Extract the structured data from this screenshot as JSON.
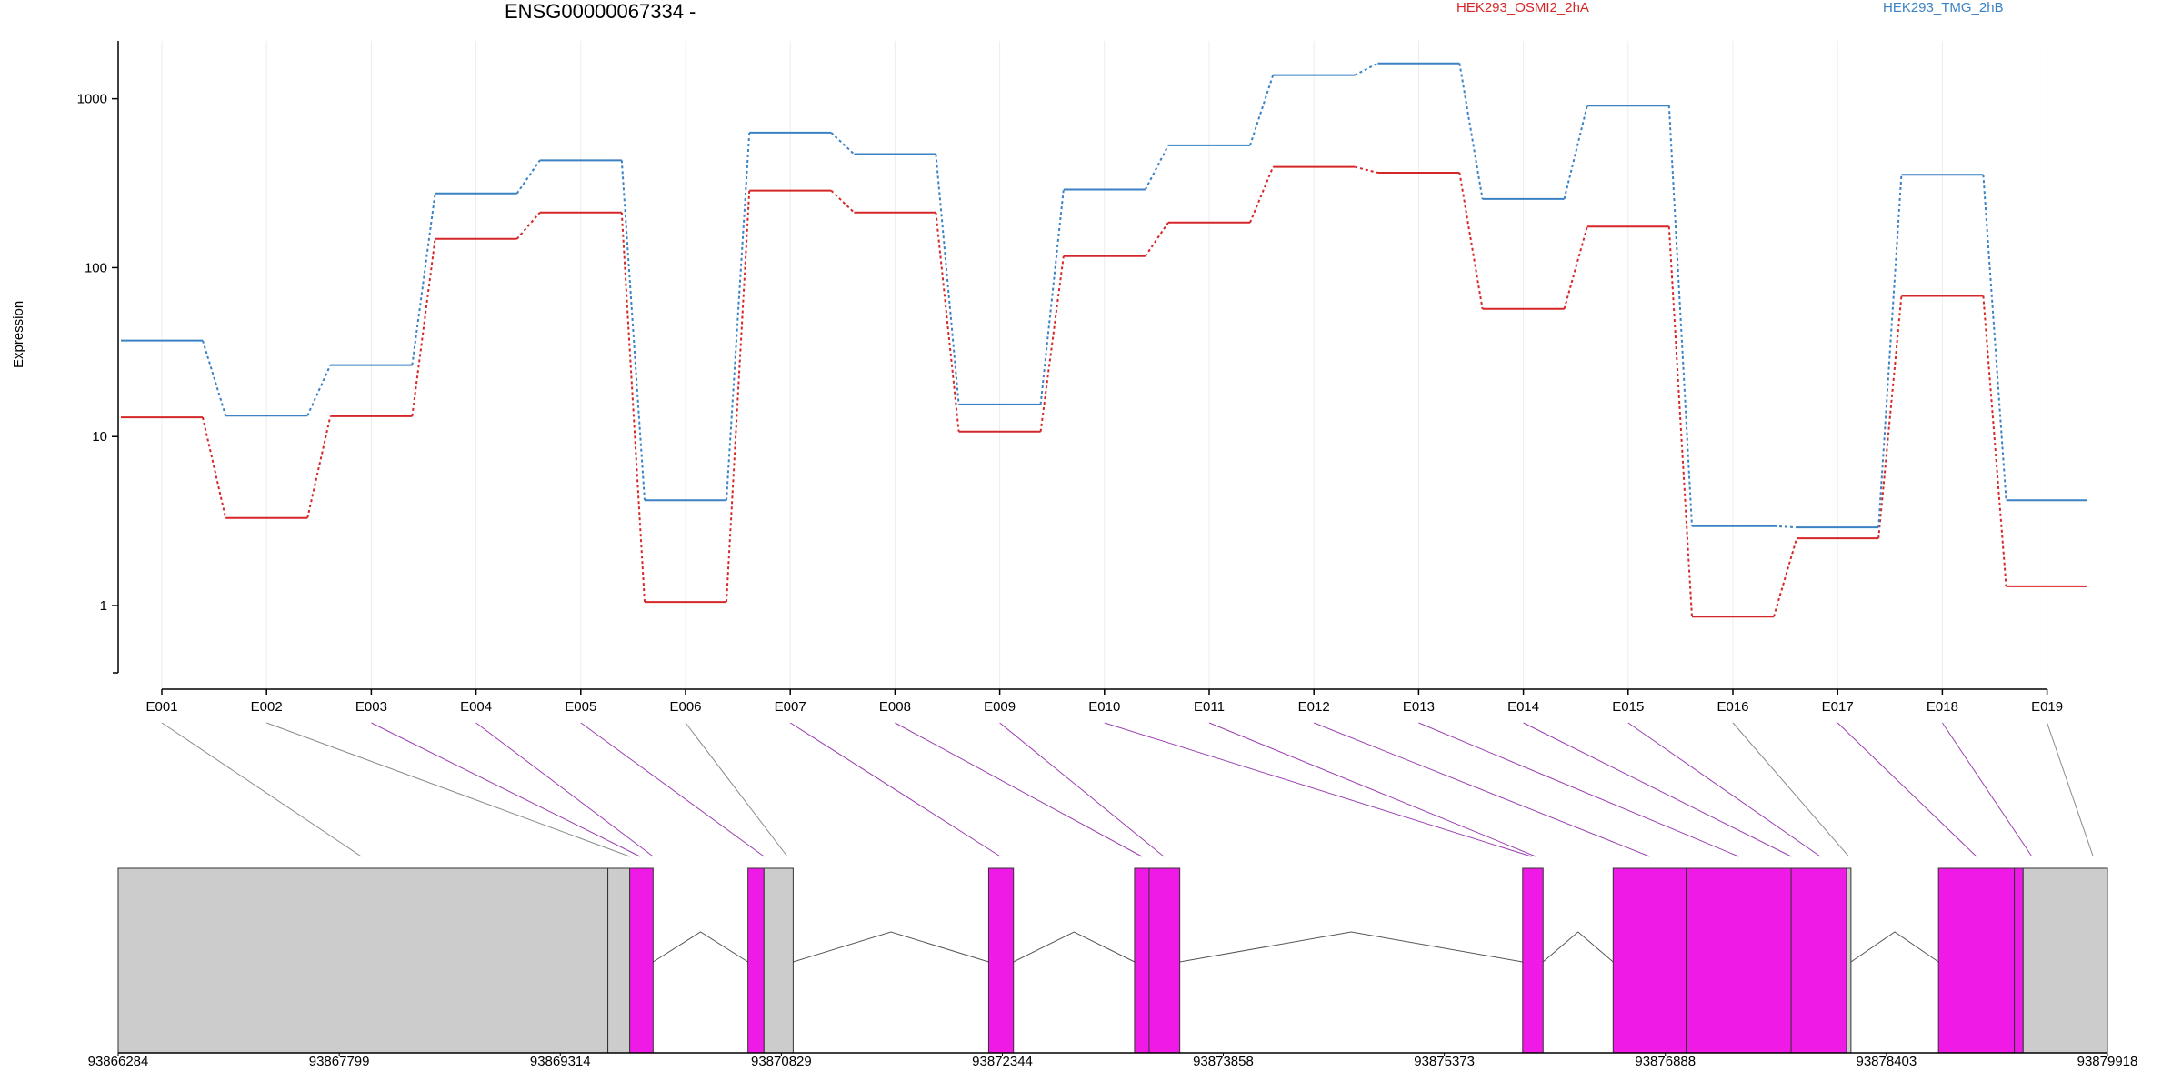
{
  "chart_data": {
    "type": "line",
    "title": "ENSG00000067334 -",
    "ylabel": "Expression",
    "xlabel": "",
    "yscale": "log",
    "ylim": [
      0.4,
      2200
    ],
    "yticks": [
      1,
      10,
      100,
      1000
    ],
    "ytick_labels": [
      "1",
      "10",
      "100",
      "1000"
    ],
    "grid": "vertical-light",
    "legend_placement": "top",
    "categories": [
      "E001",
      "E002",
      "E003",
      "E004",
      "E005",
      "E006",
      "E007",
      "E008",
      "E009",
      "E010",
      "E011",
      "E012",
      "E013",
      "E014",
      "E015",
      "E016",
      "E017",
      "E018",
      "E019"
    ],
    "series": [
      {
        "name": "HEK293_OSMI2_2hA",
        "color": "#d62728",
        "values": [
          13,
          3.3,
          13.2,
          148,
          212,
          1.05,
          286,
          212,
          10.7,
          117,
          185,
          395,
          365,
          57,
          175,
          0.86,
          2.5,
          68,
          1.3
        ]
      },
      {
        "name": "HEK293_TMG_2hB",
        "color": "#3b82c4",
        "values": [
          37,
          13.3,
          26.5,
          275,
          432,
          4.2,
          630,
          470,
          15.5,
          290,
          530,
          1380,
          1620,
          255,
          910,
          2.95,
          2.9,
          355,
          4.2
        ]
      }
    ],
    "genomic_axis": {
      "ticks": [
        93866284,
        93867799,
        93869314,
        93870829,
        93872344,
        93873858,
        93875373,
        93876888,
        93878403,
        93879918
      ],
      "tick_labels": [
        "93866284",
        "93867799",
        "93869314",
        "93870829",
        "93872344",
        "93873858",
        "93875373",
        "93876888",
        "93878403",
        "93879918"
      ],
      "range": [
        93866284,
        93879918
      ]
    },
    "gene_model": {
      "exon_color": "#f01ae6",
      "utr_color": "#cccccc",
      "blocks": [
        {
          "type": "utr",
          "start": 93866284,
          "end": 93869640
        },
        {
          "type": "utr",
          "start": 93869640,
          "end": 93869790
        },
        {
          "type": "exon",
          "start": 93869790,
          "end": 93869950
        },
        {
          "type": "exon",
          "start": 93870600,
          "end": 93870710
        },
        {
          "type": "utr",
          "start": 93870710,
          "end": 93870910
        },
        {
          "type": "exon",
          "start": 93872250,
          "end": 93872420
        },
        {
          "type": "exon",
          "start": 93873250,
          "end": 93873350
        },
        {
          "type": "exon",
          "start": 93873350,
          "end": 93873560
        },
        {
          "type": "exon",
          "start": 93875910,
          "end": 93876050
        },
        {
          "type": "exon",
          "start": 93876530,
          "end": 93877030
        },
        {
          "type": "exon",
          "start": 93877030,
          "end": 93877750
        },
        {
          "type": "exon",
          "start": 93877750,
          "end": 93878130
        },
        {
          "type": "utr",
          "start": 93878130,
          "end": 93878160
        },
        {
          "type": "exon",
          "start": 93878760,
          "end": 93879280
        },
        {
          "type": "exon",
          "start": 93879280,
          "end": 93879340
        },
        {
          "type": "utr",
          "start": 93879340,
          "end": 93879918
        }
      ],
      "introns": [
        [
          93869950,
          93870600
        ],
        [
          93870910,
          93872250
        ],
        [
          93872420,
          93873250
        ],
        [
          93873560,
          93875910
        ],
        [
          93876050,
          93876530
        ],
        [
          93878160,
          93878760
        ]
      ],
      "feature_map": [
        {
          "feature": "E001",
          "target": 93867950,
          "kind": "utr"
        },
        {
          "feature": "E002",
          "target": 93869790,
          "kind": "utr"
        },
        {
          "feature": "E003",
          "target": 93869860,
          "kind": "exon"
        },
        {
          "feature": "E004",
          "target": 93869950,
          "kind": "exon"
        },
        {
          "feature": "E005",
          "target": 93870710,
          "kind": "exon"
        },
        {
          "feature": "E006",
          "target": 93870870,
          "kind": "utr"
        },
        {
          "feature": "E007",
          "target": 93872330,
          "kind": "exon"
        },
        {
          "feature": "E008",
          "target": 93873300,
          "kind": "exon"
        },
        {
          "feature": "E009",
          "target": 93873450,
          "kind": "exon"
        },
        {
          "feature": "E010",
          "target": 93875970,
          "kind": "exon"
        },
        {
          "feature": "E011",
          "target": 93876000,
          "kind": "exon"
        },
        {
          "feature": "E012",
          "target": 93876780,
          "kind": "exon"
        },
        {
          "feature": "E013",
          "target": 93877390,
          "kind": "exon"
        },
        {
          "feature": "E014",
          "target": 93877750,
          "kind": "exon"
        },
        {
          "feature": "E015",
          "target": 93877950,
          "kind": "exon"
        },
        {
          "feature": "E016",
          "target": 93878145,
          "kind": "utr"
        },
        {
          "feature": "E017",
          "target": 93879020,
          "kind": "exon"
        },
        {
          "feature": "E018",
          "target": 93879400,
          "kind": "exon"
        },
        {
          "feature": "E019",
          "target": 93879820,
          "kind": "utr"
        }
      ]
    }
  }
}
